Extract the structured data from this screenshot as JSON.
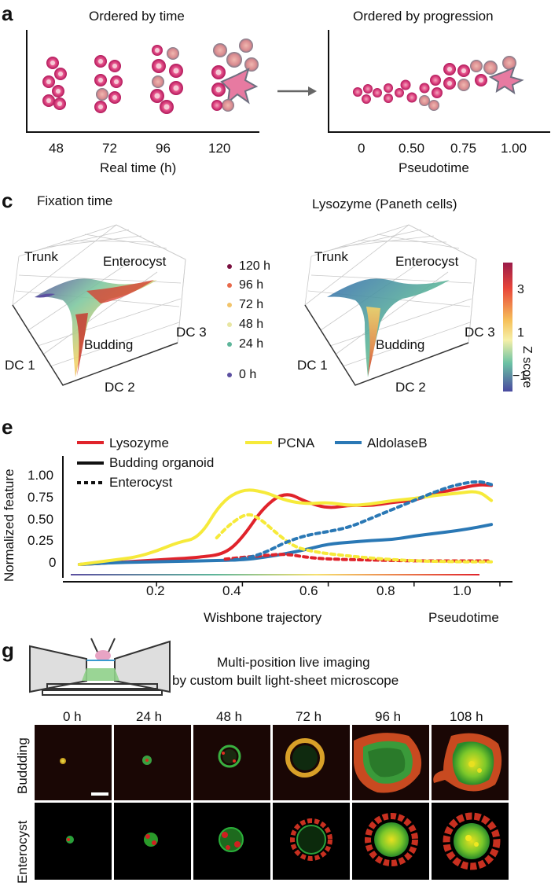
{
  "panels": {
    "a": {
      "letter": "a",
      "left": {
        "title": "Ordered by time",
        "xlabel": "Real time (h)",
        "ticks": [
          "48",
          "72",
          "96",
          "120"
        ]
      },
      "right": {
        "title": "Ordered by progression",
        "xlabel": "Pseudotime",
        "ticks": [
          "0",
          "0.50",
          "0.75",
          "1.00"
        ]
      }
    },
    "c": {
      "letter": "c",
      "left": {
        "title": "Fixation time",
        "labels": {
          "trunk": "Trunk",
          "enterocyst": "Enterocyst",
          "budding": "Budding",
          "dc1": "DC 1",
          "dc2": "DC 2",
          "dc3": "DC 3"
        }
      },
      "legend": [
        "120 h",
        "96 h",
        "72 h",
        "48 h",
        "24 h",
        "0 h"
      ],
      "legend_colors": [
        "#7a1040",
        "#e8694a",
        "#f2c46a",
        "#e8e6a2",
        "#5db59a",
        "#5b4fa0"
      ],
      "right": {
        "title": "Lysozyme (Paneth cells)",
        "labels": {
          "trunk": "Trunk",
          "enterocyst": "Enterocyst",
          "budding": "Budding",
          "dc1": "DC 1",
          "dc2": "DC 2",
          "dc3": "DC 3"
        }
      },
      "colorbar": {
        "label": "Z score",
        "ticks": [
          "3",
          "1",
          "−1"
        ]
      }
    },
    "e": {
      "letter": "e",
      "legend": {
        "series": [
          {
            "name": "Lysozyme",
            "color": "#e0232b"
          },
          {
            "name": "PCNA",
            "color": "#f6ea3a"
          },
          {
            "name": "AldolaseB",
            "color": "#2a78b5"
          }
        ],
        "styles": [
          {
            "name": "Budding organoid",
            "dash": false
          },
          {
            "name": "Enterocyst",
            "dash": true
          }
        ]
      }
    },
    "g": {
      "letter": "g",
      "caption_line1": "Multi-position live imaging",
      "caption_line2": "by custom built light-sheet microscope",
      "times": [
        "0 h",
        "24 h",
        "48 h",
        "72 h",
        "96 h",
        "108 h"
      ],
      "rows": [
        "Buddding",
        "Enterocyst"
      ]
    }
  },
  "chart_data": {
    "type": "line",
    "title": "",
    "xlabel": "Wishbone trajectory",
    "xlabel_right": "Pseudotime",
    "ylabel": "Normalized feature",
    "xlim": [
      0,
      1.0
    ],
    "ylim": [
      0,
      1.0
    ],
    "xticks": [
      "0.2",
      "0.4",
      "0.6",
      "0.8",
      "1.0"
    ],
    "yticks": [
      "0",
      "0.25",
      "0.50",
      "0.75",
      "1.00"
    ],
    "series": [
      {
        "name": "Lysozyme",
        "color": "#e0232b",
        "dash": false,
        "x": [
          0.02,
          0.1,
          0.2,
          0.3,
          0.36,
          0.4,
          0.45,
          0.5,
          0.55,
          0.6,
          0.65,
          0.7,
          0.75,
          0.8,
          0.85,
          0.9,
          0.95,
          0.98
        ],
        "y": [
          0.0,
          0.02,
          0.05,
          0.08,
          0.12,
          0.3,
          0.65,
          0.82,
          0.7,
          0.63,
          0.67,
          0.66,
          0.7,
          0.72,
          0.8,
          0.85,
          0.9,
          0.89
        ]
      },
      {
        "name": "PCNA",
        "color": "#f6ea3a",
        "dash": false,
        "x": [
          0.02,
          0.1,
          0.15,
          0.2,
          0.25,
          0.3,
          0.35,
          0.4,
          0.45,
          0.5,
          0.55,
          0.6,
          0.65,
          0.7,
          0.75,
          0.8,
          0.85,
          0.9,
          0.95,
          0.98
        ],
        "y": [
          0.0,
          0.05,
          0.08,
          0.15,
          0.25,
          0.3,
          0.7,
          0.85,
          0.82,
          0.72,
          0.68,
          0.7,
          0.66,
          0.68,
          0.72,
          0.74,
          0.78,
          0.8,
          0.83,
          0.72
        ]
      },
      {
        "name": "AldolaseB",
        "color": "#2a78b5",
        "dash": false,
        "x": [
          0.02,
          0.1,
          0.2,
          0.3,
          0.4,
          0.45,
          0.5,
          0.55,
          0.6,
          0.65,
          0.7,
          0.75,
          0.8,
          0.85,
          0.9,
          0.95,
          0.98
        ],
        "y": [
          0.0,
          0.02,
          0.03,
          0.04,
          0.05,
          0.08,
          0.12,
          0.17,
          0.23,
          0.25,
          0.27,
          0.28,
          0.32,
          0.35,
          0.38,
          0.42,
          0.45
        ]
      },
      {
        "name": "Lysozyme",
        "color": "#e0232b",
        "dash": true,
        "x": [
          0.36,
          0.4,
          0.45,
          0.5,
          0.55,
          0.6,
          0.7,
          0.8,
          0.9,
          0.98
        ],
        "y": [
          0.06,
          0.08,
          0.1,
          0.12,
          0.08,
          0.06,
          0.05,
          0.04,
          0.04,
          0.04
        ]
      },
      {
        "name": "PCNA",
        "color": "#f6ea3a",
        "dash": true,
        "x": [
          0.34,
          0.37,
          0.41,
          0.44,
          0.48,
          0.52,
          0.56,
          0.6,
          0.7,
          0.8,
          0.9,
          0.98
        ],
        "y": [
          0.3,
          0.45,
          0.58,
          0.52,
          0.35,
          0.2,
          0.15,
          0.12,
          0.07,
          0.04,
          0.03,
          0.03
        ]
      },
      {
        "name": "AldolaseB",
        "color": "#2a78b5",
        "dash": true,
        "x": [
          0.38,
          0.42,
          0.46,
          0.5,
          0.55,
          0.6,
          0.65,
          0.7,
          0.75,
          0.8,
          0.85,
          0.9,
          0.95,
          0.98
        ],
        "y": [
          0.05,
          0.08,
          0.15,
          0.25,
          0.33,
          0.37,
          0.42,
          0.52,
          0.62,
          0.72,
          0.82,
          0.9,
          0.94,
          0.9
        ]
      }
    ]
  }
}
